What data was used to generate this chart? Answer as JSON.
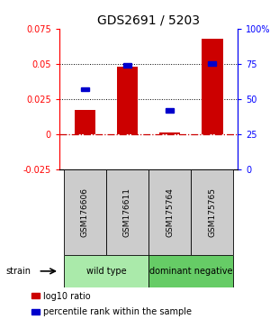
{
  "title": "GDS2691 / 5203",
  "samples": [
    "GSM176606",
    "GSM176611",
    "GSM175764",
    "GSM175765"
  ],
  "log10_ratio": [
    0.017,
    0.048,
    0.001,
    0.068
  ],
  "percentile_rank_pct": [
    57,
    74,
    42,
    75
  ],
  "groups": [
    {
      "label": "wild type",
      "samples": [
        0,
        1
      ],
      "color": "#aaeaaa"
    },
    {
      "label": "dominant negative",
      "samples": [
        2,
        3
      ],
      "color": "#66cc66"
    }
  ],
  "ylim_left": [
    -0.025,
    0.075
  ],
  "ylim_right": [
    0,
    100
  ],
  "yticks_left": [
    -0.025,
    0,
    0.025,
    0.05,
    0.075
  ],
  "yticks_right": [
    0,
    25,
    50,
    75,
    100
  ],
  "hlines": [
    0.025,
    0.05
  ],
  "bar_color": "#cc0000",
  "square_color": "#0000cc",
  "zero_line_color": "#cc0000",
  "background_color": "#ffffff",
  "sample_box_color": "#cccccc",
  "strain_label": "strain",
  "legend_items": [
    "log10 ratio",
    "percentile rank within the sample"
  ],
  "legend_colors": [
    "#cc0000",
    "#0000cc"
  ]
}
